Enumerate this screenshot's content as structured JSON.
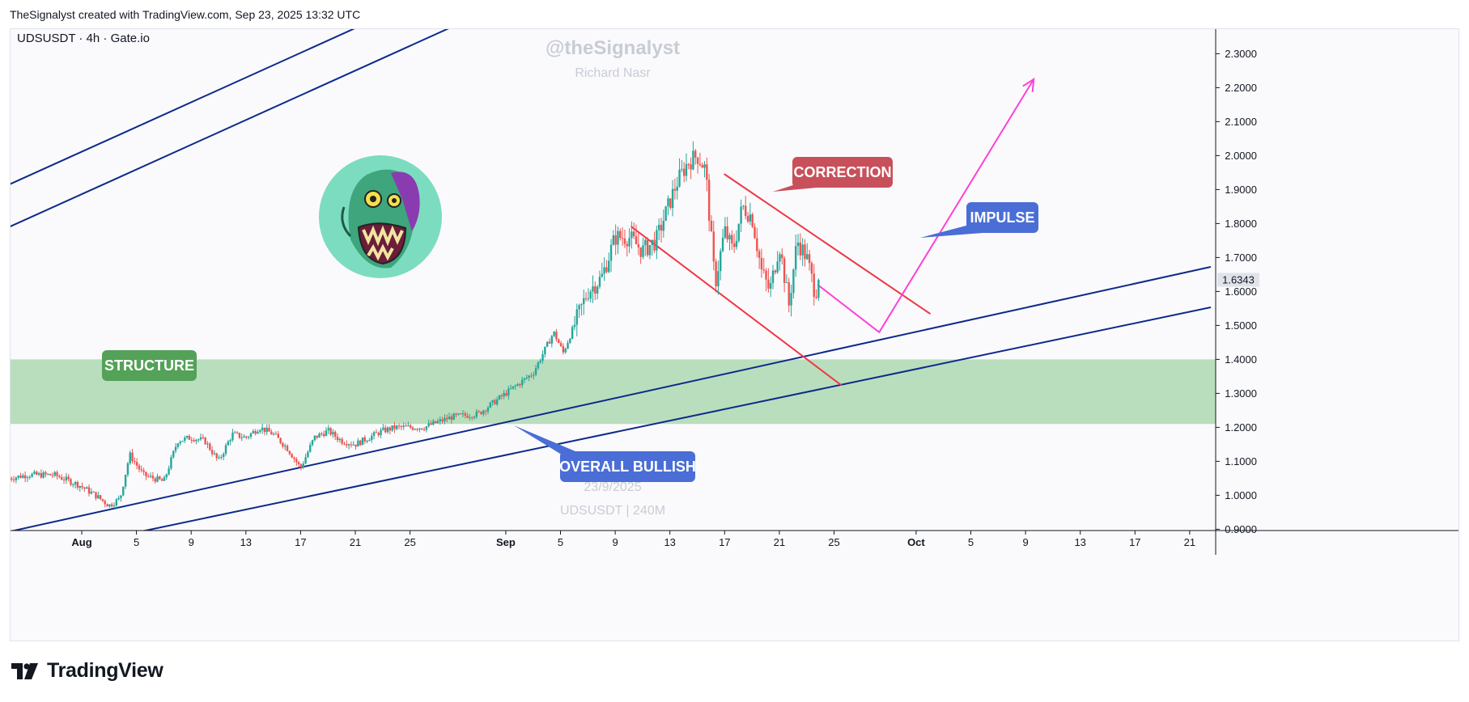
{
  "header": {
    "attribution": "TheSignalyst created with TradingView.com, Sep 23, 2025 13:32 UTC"
  },
  "chart": {
    "symbol_line": "UDSUSDT · 4h · Gate.io"
  },
  "watermarks": {
    "handle": "@theSignalyst",
    "author": "Richard Nasr",
    "date": "23/9/2025",
    "symbol_tf": "UDSUSDT | 240M"
  },
  "annotations": {
    "structure": "STRUCTURE",
    "correction": "CORRECTION",
    "impulse": "IMPULSE",
    "overall": "OVERALL BULLISH"
  },
  "footer": {
    "brand": "TradingView"
  },
  "colors": {
    "up": "#26a69a",
    "down": "#ef5350",
    "channel": "#0d2a8a",
    "correction": "#f23645",
    "impulse": "#ff40d6",
    "structure_zone": "#b5dcb9",
    "structure_label": "#54a158",
    "correction_label": "#c8505a",
    "blue_label": "#4a6ed6"
  },
  "chart_data": {
    "type": "candlestick",
    "title": "UDSUSDT · 4h · Gate.io",
    "y_ticks": [
      "2.3000",
      "2.2000",
      "2.1000",
      "2.0000",
      "1.9000",
      "1.8000",
      "1.7000",
      "1.6000",
      "1.5000",
      "1.4000",
      "1.3000",
      "1.2000",
      "1.1000",
      "1.0000",
      "0.9000"
    ],
    "ylim": [
      0.85,
      2.33
    ],
    "x_ticks": [
      {
        "label": "Aug",
        "bold": true,
        "day": 0
      },
      {
        "label": "5",
        "day": 4
      },
      {
        "label": "9",
        "day": 8
      },
      {
        "label": "13",
        "day": 12
      },
      {
        "label": "17",
        "day": 16
      },
      {
        "label": "21",
        "day": 20
      },
      {
        "label": "25",
        "day": 24
      },
      {
        "label": "Sep",
        "bold": true,
        "day": 31
      },
      {
        "label": "5",
        "day": 35
      },
      {
        "label": "9",
        "day": 39
      },
      {
        "label": "13",
        "day": 43
      },
      {
        "label": "17",
        "day": 47
      },
      {
        "label": "21",
        "day": 51
      },
      {
        "label": "25",
        "day": 55
      },
      {
        "label": "Oct",
        "bold": true,
        "day": 61
      },
      {
        "label": "5",
        "day": 65
      },
      {
        "label": "9",
        "day": 69
      },
      {
        "label": "13",
        "day": 73
      },
      {
        "label": "17",
        "day": 77
      },
      {
        "label": "21",
        "day": 81
      }
    ],
    "last_price": "1.6343",
    "price_path": [
      [
        -5.3,
        1.05
      ],
      [
        -4,
        1.06
      ],
      [
        -2,
        1.06
      ],
      [
        -0.2,
        1.03
      ],
      [
        1,
        1.0
      ],
      [
        2,
        0.97
      ],
      [
        2.8,
        0.99
      ],
      [
        3.5,
        1.12
      ],
      [
        4.5,
        1.06
      ],
      [
        6,
        1.04
      ],
      [
        7,
        1.16
      ],
      [
        8,
        1.17
      ],
      [
        9,
        1.16
      ],
      [
        10,
        1.1
      ],
      [
        11,
        1.18
      ],
      [
        12,
        1.17
      ],
      [
        13,
        1.2
      ],
      [
        14,
        1.18
      ],
      [
        15,
        1.14
      ],
      [
        16,
        1.08
      ],
      [
        17,
        1.17
      ],
      [
        18,
        1.19
      ],
      [
        19,
        1.16
      ],
      [
        20,
        1.15
      ],
      [
        21,
        1.17
      ],
      [
        22,
        1.19
      ],
      [
        23,
        1.2
      ],
      [
        25,
        1.2
      ],
      [
        27,
        1.23
      ],
      [
        29,
        1.24
      ],
      [
        31,
        1.3
      ],
      [
        33,
        1.36
      ],
      [
        34.5,
        1.48
      ],
      [
        35.2,
        1.42
      ],
      [
        35.8,
        1.48
      ],
      [
        37,
        1.6
      ],
      [
        38,
        1.64
      ],
      [
        39,
        1.76
      ],
      [
        40,
        1.76
      ],
      [
        41,
        1.72
      ],
      [
        42,
        1.75
      ],
      [
        42.6,
        1.82
      ],
      [
        43.5,
        1.92
      ],
      [
        44.3,
        1.98
      ],
      [
        45,
        2.0
      ],
      [
        45.6,
        1.96
      ],
      [
        46.3,
        1.62
      ],
      [
        47,
        1.78
      ],
      [
        47.6,
        1.72
      ],
      [
        48.3,
        1.85
      ],
      [
        49,
        1.82
      ],
      [
        49.7,
        1.66
      ],
      [
        50.3,
        1.6
      ],
      [
        51,
        1.74
      ],
      [
        51.7,
        1.56
      ],
      [
        52.3,
        1.75
      ],
      [
        53,
        1.7
      ],
      [
        53.6,
        1.6
      ],
      [
        54,
        1.63
      ]
    ],
    "drawings": {
      "channel_outer_top": [
        [
          -5.3,
          1.915
        ],
        [
          29.6,
          2.55
        ]
      ],
      "channel_outer_upper": [
        [
          -5.3,
          1.79
        ],
        [
          29.6,
          2.425
        ]
      ],
      "channel_lower_a": [
        [
          -5.3,
          0.893
        ],
        [
          82.5,
          1.672
        ]
      ],
      "channel_lower_b": [
        [
          -2.0,
          0.84
        ],
        [
          82.5,
          1.553
        ]
      ],
      "correction_top": [
        [
          47.0,
          1.945
        ],
        [
          62.0,
          1.535
        ]
      ],
      "correction_bottom": [
        [
          40.2,
          1.79
        ],
        [
          55.5,
          1.325
        ]
      ],
      "impulse_path": [
        [
          53.8,
          1.62
        ],
        [
          58.3,
          1.48
        ],
        [
          69.6,
          2.225
        ]
      ],
      "structure_zone": [
        1.21,
        1.4
      ]
    }
  }
}
